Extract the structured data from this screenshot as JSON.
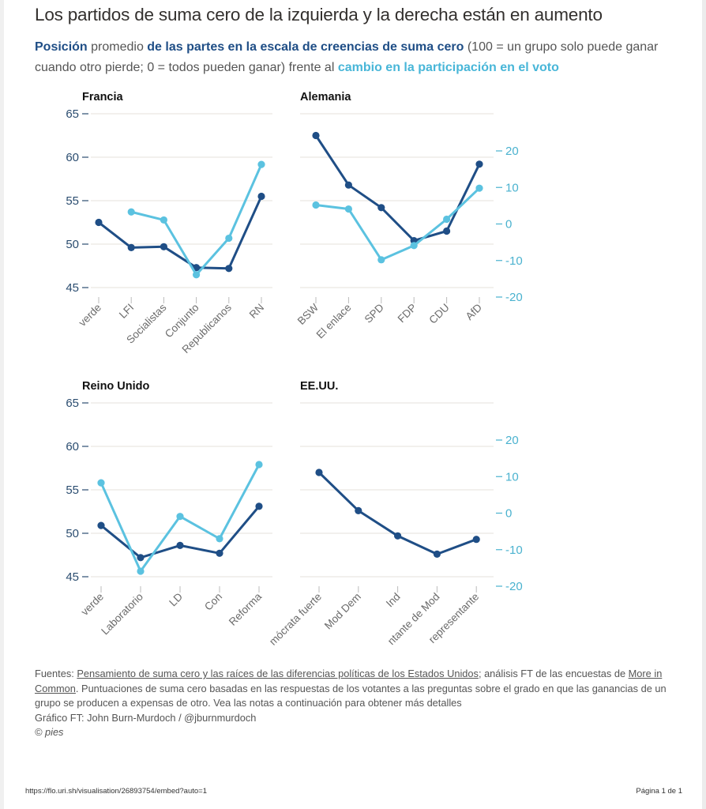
{
  "title": "Los partidos de suma cero de la izquierda y la derecha están en aumento",
  "subtitle": {
    "part1": "Posición",
    "part2": " promedio ",
    "part3": "de las partes en la escala de creencias de suma cero",
    "part4": " (100 = un grupo solo puede ganar cuando otro pierde; 0 = todos pueden ganar) frente al ",
    "part5": "cambio en la participación en el voto"
  },
  "colors": {
    "position_series": "#1f4e86",
    "turnout_series": "#5bc2e0",
    "left_axis_text": "#2b4d70",
    "right_axis_text": "#4ab2cf",
    "gridline": "#ebe8e2"
  },
  "chart_data": [
    {
      "type": "line",
      "title": "Francia",
      "categories": [
        "verde",
        "LFI",
        "Socialistas",
        "Conjunto",
        "Republicanos",
        "RN"
      ],
      "left_axis": {
        "label": "Posición en escala de suma cero",
        "range": [
          45,
          65
        ],
        "ticks": [
          45,
          50,
          55,
          60,
          65
        ],
        "visible": true
      },
      "right_axis": {
        "label": "Cambio en la participación en el voto",
        "range": [
          -20,
          20
        ],
        "ticks": [],
        "visible": false
      },
      "series": [
        {
          "name": "Posición suma cero",
          "axis": "left",
          "values": [
            52.5,
            49.6,
            49.7,
            47.3,
            47.2,
            55.5
          ]
        },
        {
          "name": "Cambio en la participación",
          "axis": "right",
          "values": [
            null,
            3.3,
            1.1,
            -13.9,
            -3.9,
            16.3
          ]
        }
      ],
      "grid": true
    },
    {
      "type": "line",
      "title": "Alemania",
      "categories": [
        "BSW",
        "El enlace",
        "SPD",
        "FDP",
        "CDU",
        "AfD"
      ],
      "left_axis": {
        "range": [
          45,
          65
        ],
        "ticks": [],
        "visible": false
      },
      "right_axis": {
        "range": [
          -20,
          20
        ],
        "ticks": [
          20,
          10,
          0,
          -10,
          -20
        ],
        "visible": true
      },
      "series": [
        {
          "name": "Posición suma cero",
          "axis": "left",
          "values": [
            62.5,
            56.8,
            54.2,
            50.4,
            51.5,
            59.2
          ]
        },
        {
          "name": "Cambio en la participación",
          "axis": "right",
          "values": [
            5.2,
            4.1,
            -9.8,
            -5.9,
            1.3,
            9.8
          ]
        }
      ],
      "grid": true
    },
    {
      "type": "line",
      "title": "Reino Unido",
      "categories": [
        "verde",
        "Laboratorio",
        "LD",
        "Con",
        "Reforma"
      ],
      "left_axis": {
        "range": [
          45,
          65
        ],
        "ticks": [
          45,
          50,
          55,
          60,
          65
        ],
        "visible": true
      },
      "right_axis": {
        "range": [
          -20,
          20
        ],
        "ticks": [],
        "visible": false
      },
      "series": [
        {
          "name": "Posición suma cero",
          "axis": "left",
          "values": [
            50.9,
            47.2,
            48.6,
            47.7,
            53.1
          ]
        },
        {
          "name": "Cambio en la participación",
          "axis": "right",
          "values": [
            8.3,
            -15.9,
            -0.9,
            -7.0,
            13.3
          ]
        }
      ],
      "grid": true
    },
    {
      "type": "line",
      "title": "EE.UU.",
      "categories": [
        "mócrata fuerte",
        "Mod Dem",
        "Ind",
        "ntante de Mod",
        "representante"
      ],
      "left_axis": {
        "range": [
          45,
          65
        ],
        "ticks": [],
        "visible": false
      },
      "right_axis": {
        "range": [
          -20,
          20
        ],
        "ticks": [
          20,
          10,
          0,
          -10,
          -20
        ],
        "visible": true
      },
      "series": [
        {
          "name": "Posición suma cero",
          "axis": "left",
          "values": [
            57.0,
            52.6,
            49.7,
            47.6,
            49.3
          ]
        }
      ],
      "grid": true
    }
  ],
  "footer": {
    "sources_label": "Fuentes: ",
    "source_link_1": "Pensamiento de suma cero y las raíces de las diferencias políticas de los Estados Unidos",
    "sources_mid": "; análisis FT de las encuestas de ",
    "source_link_2": "More in Common",
    "notes": ". Puntuaciones de suma cero basadas en las respuestas de los votantes a las preguntas sobre el grado en que las ganancias de un grupo se producen a expensas de otro. Vea las notas a continuación para obtener más detalles",
    "credit": "Gráfico FT: John Burn-Murdoch / @jburnmurdoch",
    "copyright": "© pies"
  },
  "print_footer": {
    "url": "https://flo.uri.sh/visualisation/26893754/embed?auto=1",
    "page": "Página 1 de 1"
  }
}
